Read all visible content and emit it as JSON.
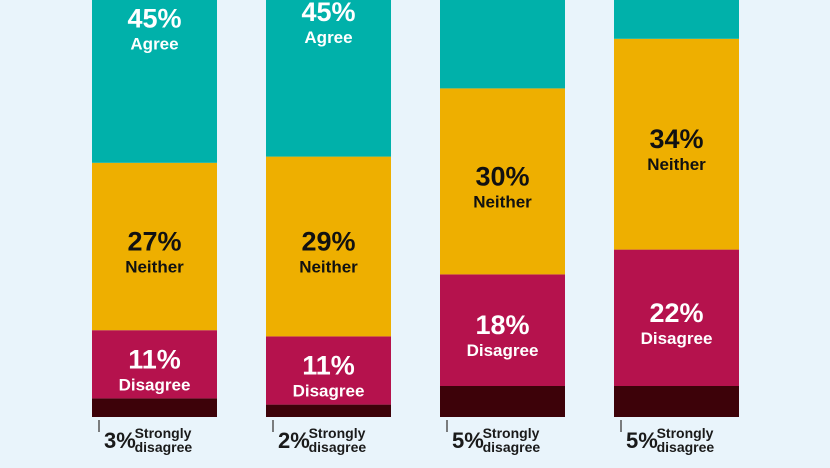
{
  "chart_data": {
    "type": "bar",
    "stacked": true,
    "categories": [
      "",
      "",
      "",
      ""
    ],
    "series": [
      {
        "name": "Strongly disagree",
        "label": "Strongly disagree",
        "values": [
          3,
          2,
          5,
          5
        ],
        "color": "#3d0209",
        "text_color": "#1a1a1a"
      },
      {
        "name": "Disagree",
        "label": "Disagree",
        "values": [
          11,
          11,
          18,
          22
        ],
        "color": "#b5124d",
        "text_color": "#ffffff"
      },
      {
        "name": "Neither",
        "label": "Neither",
        "values": [
          27,
          29,
          30,
          34
        ],
        "color": "#eeaf00",
        "text_color": "#111111"
      },
      {
        "name": "Agree",
        "label": "Agree",
        "values": [
          45,
          45,
          null,
          null
        ],
        "color": "#00b1aa",
        "text_color": "#ffffff"
      }
    ],
    "title": "",
    "xlabel": "",
    "ylabel": "",
    "legend": "none"
  }
}
